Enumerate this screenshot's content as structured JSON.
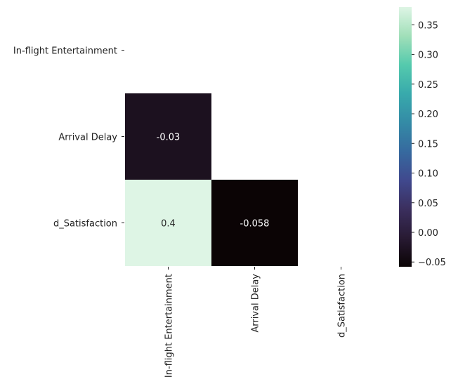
{
  "chart_data": {
    "type": "heatmap",
    "title": "",
    "xlabel": "",
    "ylabel": "",
    "rows": [
      "In-flight Entertainment",
      "Arrival Delay",
      "d_Satisfaction"
    ],
    "columns": [
      "In-flight Entertainment",
      "Arrival Delay",
      "d_Satisfaction"
    ],
    "mask": "upper-triangle-including-diagonal",
    "cells": [
      {
        "row": 1,
        "col": 0,
        "value": -0.03,
        "label": "-0.03"
      },
      {
        "row": 2,
        "col": 0,
        "value": 0.38,
        "label": "0.4"
      },
      {
        "row": 2,
        "col": 1,
        "value": -0.058,
        "label": "-0.058"
      }
    ],
    "colormap": "mako",
    "colorbar": {
      "vmin": -0.058,
      "vmax": 0.38,
      "ticks": [
        -0.05,
        0.0,
        0.05,
        0.1,
        0.15,
        0.2,
        0.25,
        0.3,
        0.35
      ],
      "tick_labels": [
        "−0.05",
        "0.00",
        "0.05",
        "0.10",
        "0.15",
        "0.20",
        "0.25",
        "0.30",
        "0.35"
      ],
      "colors": [
        "#0b0405",
        "#281a33",
        "#3b2f5e",
        "#40498e",
        "#366a9f",
        "#348ba6",
        "#38aaac",
        "#55caad",
        "#a1dfb9",
        "#def5e5"
      ]
    },
    "grid": false,
    "legend": "colorbar-right"
  }
}
